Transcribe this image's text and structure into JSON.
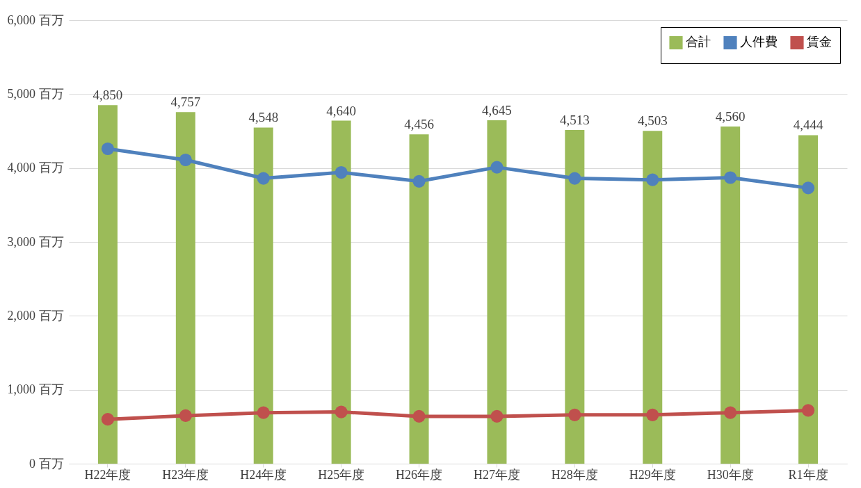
{
  "chart_data": {
    "type": "bar",
    "categories": [
      "H22年度",
      "H23年度",
      "H24年度",
      "H25年度",
      "H26年度",
      "H27年度",
      "H28年度",
      "H29年度",
      "H30年度",
      "R1年度"
    ],
    "series": [
      {
        "name": "合計",
        "color": "#9bbb59",
        "values": [
          4850,
          4757,
          4548,
          4640,
          4456,
          4645,
          4513,
          4503,
          4560,
          4444
        ],
        "value_labels": [
          "4,850",
          "4,757",
          "4,548",
          "4,640",
          "4,456",
          "4,645",
          "4,513",
          "4,503",
          "4,560",
          "4,444"
        ]
      },
      {
        "name": "人件費",
        "type": "line",
        "color": "#4f81bd",
        "values": [
          4260,
          4110,
          3860,
          3940,
          3820,
          4010,
          3860,
          3840,
          3870,
          3730
        ]
      },
      {
        "name": "賃金",
        "type": "line",
        "color": "#c0504d",
        "values": [
          600,
          650,
          690,
          700,
          640,
          640,
          660,
          660,
          690,
          720
        ]
      }
    ],
    "ylim": [
      0,
      6000
    ],
    "yticks": [
      {
        "value": 0,
        "label": "0 百万"
      },
      {
        "value": 1000,
        "label": "1,000 百万"
      },
      {
        "value": 2000,
        "label": "2,000 百万"
      },
      {
        "value": 3000,
        "label": "3,000 百万"
      },
      {
        "value": 4000,
        "label": "4,000 百万"
      },
      {
        "value": 5000,
        "label": "5,000 百万"
      },
      {
        "value": 6000,
        "label": "6,000 百万"
      }
    ],
    "grid": "y",
    "legend": "top right",
    "marker": "circle",
    "line_style": "solid"
  }
}
